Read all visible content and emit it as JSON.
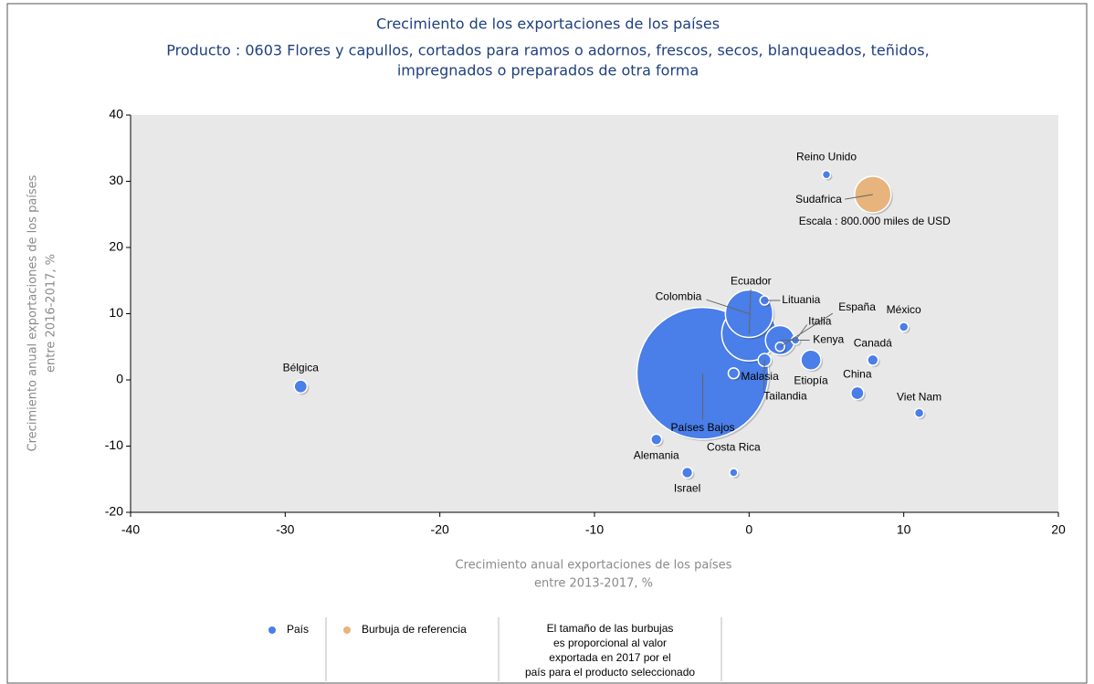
{
  "chart_data": {
    "type": "bubble",
    "title": "Crecimiento de los exportaciones de los países",
    "subtitle": [
      "Producto : 0603 Flores y capullos, cortados para ramos o adornos, frescos, secos, blanqueados, teñidos,",
      "impregnados o preparados de otra forma"
    ],
    "x_label": [
      "Crecimiento anual exportaciones de los países",
      "entre 2013-2017, %"
    ],
    "y_label": [
      "Crecimiento anual exportaciones de los países",
      "entre 2016-2017, %"
    ],
    "xlim": [
      -40,
      20
    ],
    "xticks": [
      -40,
      -30,
      -20,
      -10,
      0,
      10,
      20
    ],
    "ylim": [
      -20,
      40
    ],
    "yticks": [
      -20,
      -10,
      0,
      10,
      20,
      30,
      40
    ],
    "series": [
      {
        "name": "País",
        "color": "#4a7ee8",
        "labels": [
          "Bélgica",
          "Países Bajos",
          "Colombia",
          "Ecuador",
          "Lituania",
          "España",
          "Italia",
          "Kenya",
          "Malasia",
          "Tailandia",
          "Etiopía",
          "Canadá",
          "México",
          "China",
          "Viet Nam",
          "Reino Unido",
          "Alemania",
          "Israel",
          "Costa Rica"
        ],
        "x": [
          -29,
          -3,
          0,
          0,
          1,
          2,
          3,
          2,
          -1,
          1,
          4,
          8,
          10,
          7,
          11,
          5,
          -6,
          -4,
          -1
        ],
        "values": [
          -1,
          1,
          10,
          7,
          12,
          5,
          6,
          6,
          1,
          3,
          3,
          3,
          8,
          -2,
          -5,
          31,
          -9,
          -14,
          -14
        ],
        "sizes": [
          100000,
          10400000,
          1350000,
          1800000,
          50000,
          50000,
          40000,
          510000,
          70000,
          100000,
          240000,
          70000,
          50000,
          100000,
          50000,
          40000,
          70000,
          70000,
          40000
        ]
      },
      {
        "name": "Burbuja de referencia",
        "color": "#e6b47c",
        "labels": [
          "Sudafrica"
        ],
        "x": [
          8
        ],
        "values": [
          28
        ],
        "sizes": [
          800000
        ]
      }
    ],
    "annotation": "Escala : 800.000 miles de USD",
    "size_note": [
      "El tamaño de las burbujas",
      "es proporcional al valor",
      "exportada en 2017 por el",
      "país para el producto seleccionado"
    ]
  }
}
